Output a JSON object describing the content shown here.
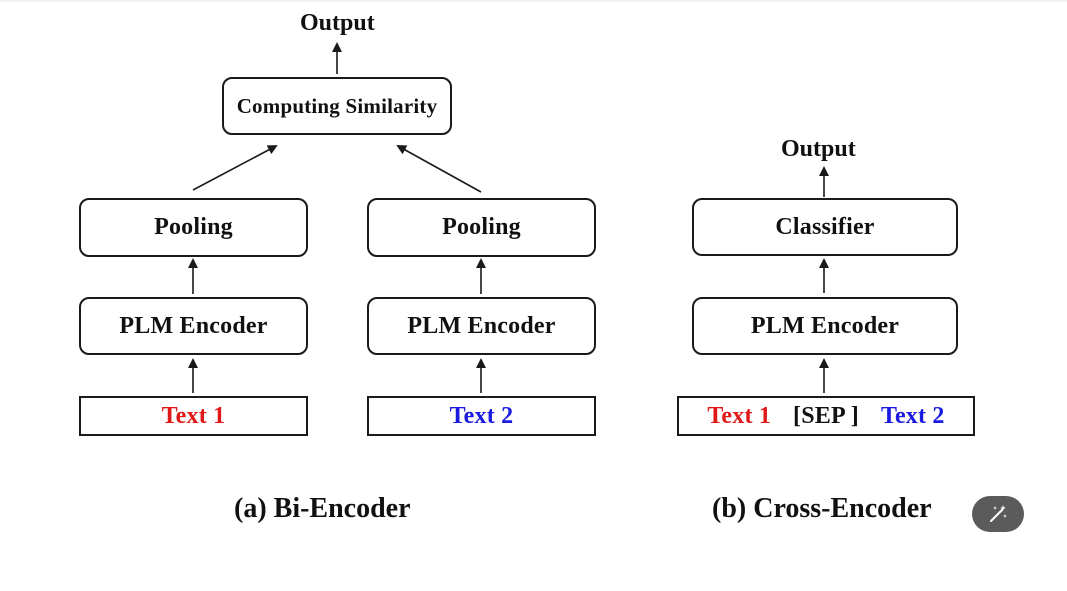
{
  "bi_encoder": {
    "output": "Output",
    "similarity": "Computing Similarity",
    "pooling_left": "Pooling",
    "pooling_right": "Pooling",
    "encoder_left": "PLM Encoder",
    "encoder_right": "PLM Encoder",
    "text_left": "Text 1",
    "text_right": "Text 2",
    "caption": "(a) Bi-Encoder"
  },
  "cross_encoder": {
    "output": "Output",
    "classifier": "Classifier",
    "encoder": "PLM Encoder",
    "text1": "Text 1",
    "sep": "[SEP ]",
    "text2": "Text 2",
    "caption": "(b) Cross-Encoder"
  },
  "colors": {
    "text1": "#e01818",
    "text2": "#1a1ae0"
  },
  "icons": {
    "magic_button": "magic-wand-icon"
  }
}
